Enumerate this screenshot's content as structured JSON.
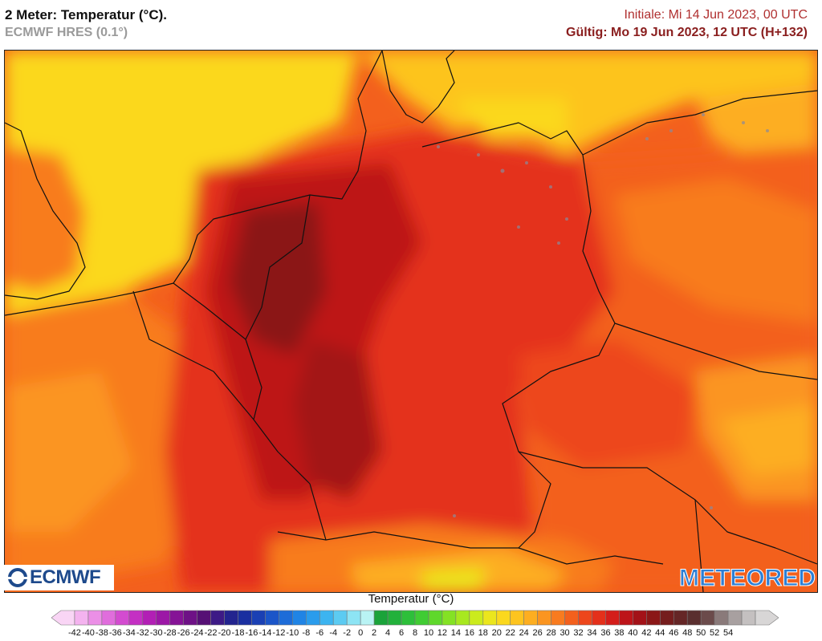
{
  "header": {
    "title": "2 Meter: Temperatur (°C).",
    "model": "ECMWF HRES (0.1°)",
    "initial": "Initiale: Mi 14 Jun 2023, 00 UTC",
    "valid": "Gültig: Mo 19 Jun 2023, 12 UTC (H+132)"
  },
  "logos": {
    "left": "ECMWF",
    "right": "METEORED"
  },
  "legend": {
    "title": "Temperatur (°C)",
    "ticks": [
      "-42",
      "-40",
      "-38",
      "-36",
      "-34",
      "-32",
      "-30",
      "-28",
      "-26",
      "-24",
      "-22",
      "-20",
      "-18",
      "-16",
      "-14",
      "-12",
      "-10",
      "-8",
      "-6",
      "-4",
      "-2",
      "0",
      "2",
      "4",
      "6",
      "8",
      "10",
      "12",
      "14",
      "16",
      "18",
      "20",
      "22",
      "24",
      "26",
      "28",
      "30",
      "32",
      "34",
      "36",
      "38",
      "40",
      "42",
      "44",
      "46",
      "48",
      "50",
      "52",
      "54"
    ],
    "colors": [
      "#f9d5f5",
      "#f4b3ef",
      "#eb8fe6",
      "#e06ddc",
      "#d34bd0",
      "#c430c3",
      "#b21fb5",
      "#9c17a6",
      "#851396",
      "#6e1186",
      "#561075",
      "#3d1a86",
      "#23248f",
      "#1a2fa0",
      "#1a40b4",
      "#1b55c8",
      "#1d6cd8",
      "#2084e5",
      "#2a9cec",
      "#3cb4f0",
      "#5ccbf2",
      "#8de4f4",
      "#b9f3f4",
      "#1aa33a",
      "#22b13b",
      "#2dbf3a",
      "#40cc33",
      "#5fd82b",
      "#84e224",
      "#a8e81f",
      "#cbeb1d",
      "#ebe61d",
      "#fbd81e",
      "#fdc41f",
      "#fdae20",
      "#fb9520",
      "#f87b1f",
      "#f3601d",
      "#ed461b",
      "#e4301a",
      "#d41d1a",
      "#bd1419",
      "#a31218",
      "#8b1717",
      "#751d1d",
      "#652626",
      "#5a2f2f",
      "#6b4b4b",
      "#8a7a7a",
      "#a8a0a0",
      "#c4c0c0",
      "#d8d6d6"
    ]
  }
}
